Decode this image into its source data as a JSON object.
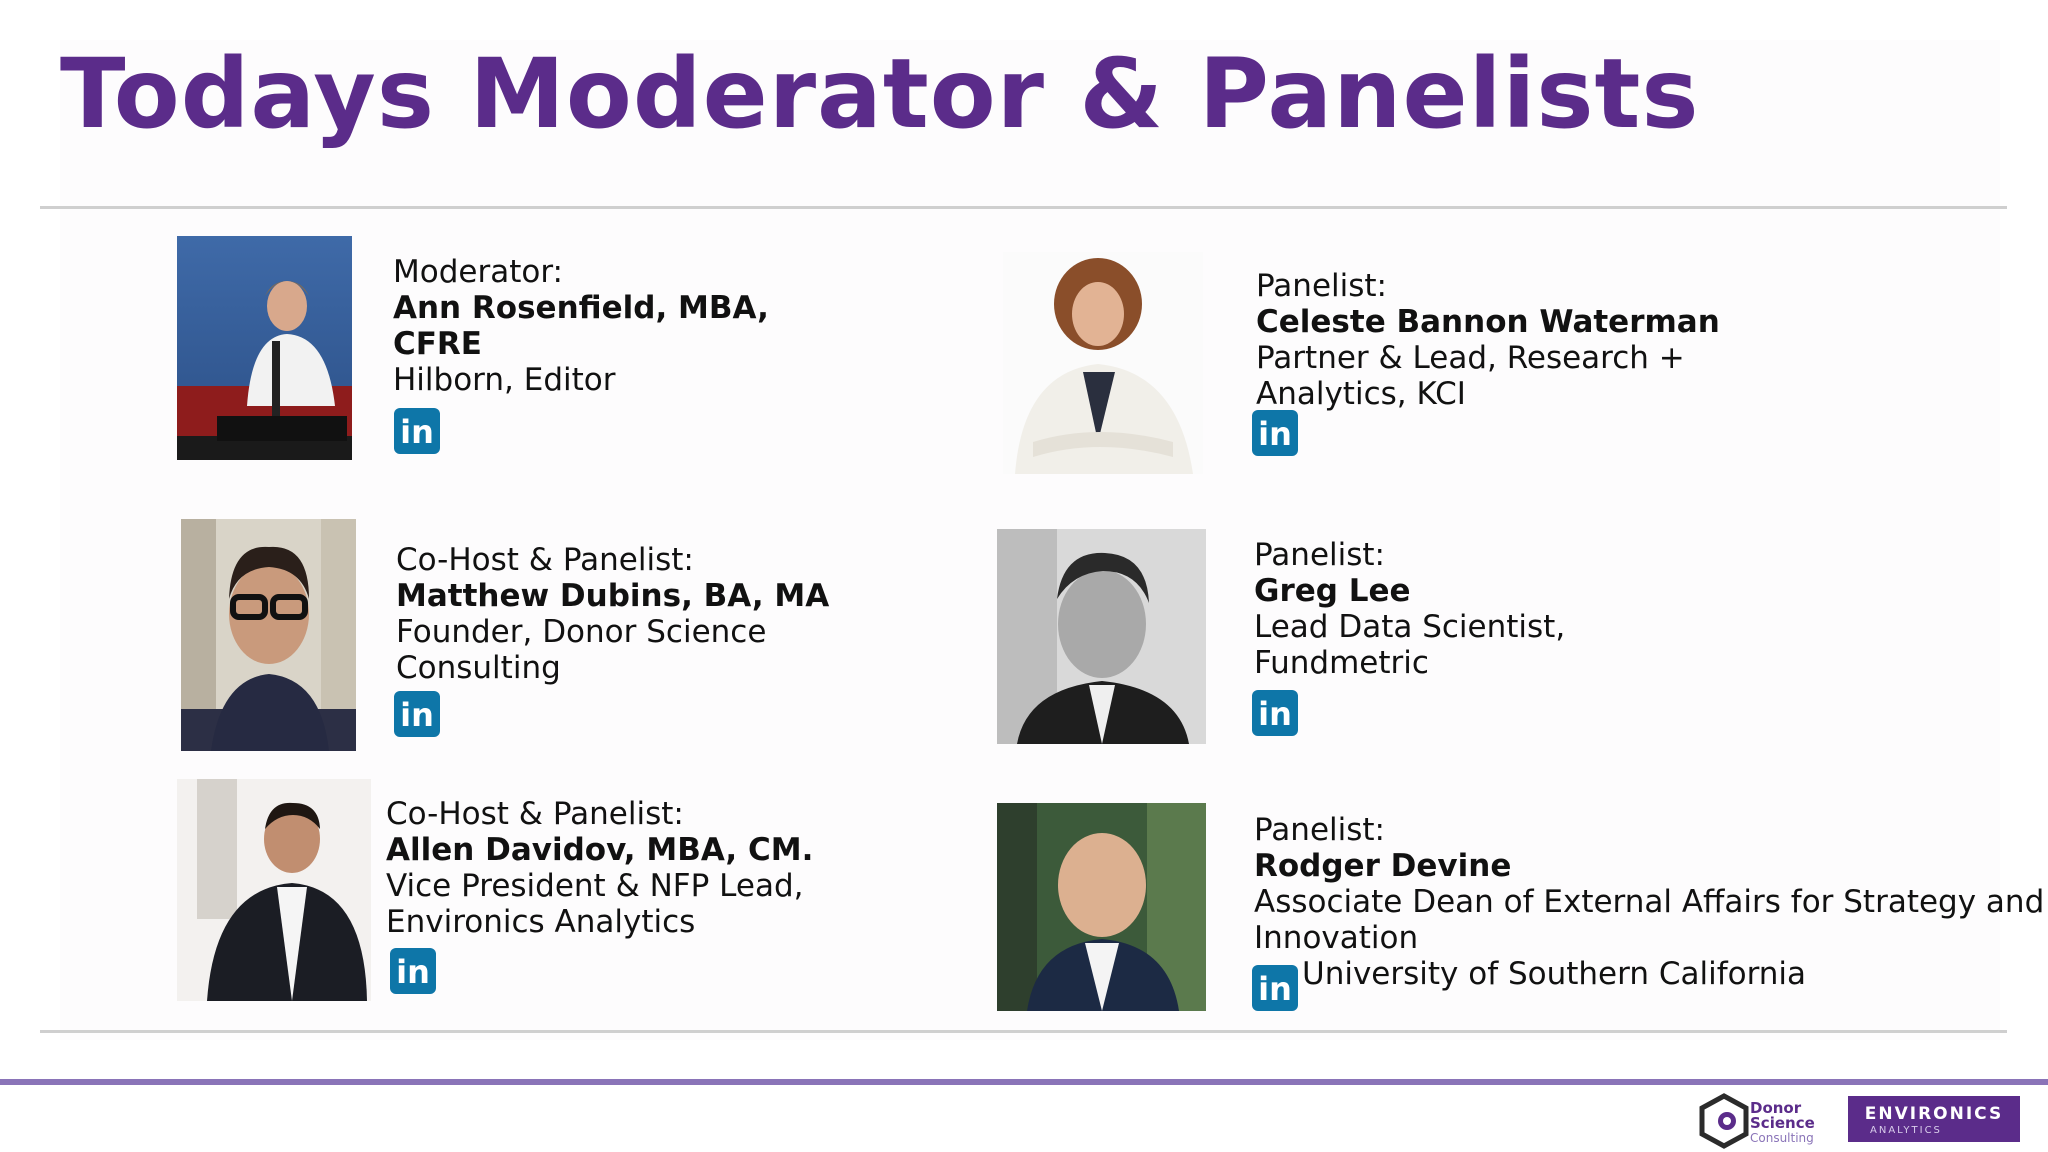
{
  "slide": {
    "title": "Todays Moderator & Panelists"
  },
  "people": [
    {
      "role": "Moderator:",
      "name_line1": "Ann Rosenfield, MBA,",
      "name_line2": "CFRE",
      "org": "Hilborn, Editor",
      "linkedin_icon": "linkedin-icon"
    },
    {
      "role": "Co-Host & Panelist:",
      "name": "Matthew Dubins, BA, MA",
      "org_line1": "Founder, Donor Science",
      "org_line2": "Consulting",
      "linkedin_icon": "linkedin-icon"
    },
    {
      "role": "Co-Host & Panelist:",
      "name": "Allen Davidov, MBA, CM.",
      "org_line1": "Vice President & NFP Lead,",
      "org_line2": "Environics Analytics",
      "linkedin_icon": "linkedin-icon"
    },
    {
      "role": "Panelist:",
      "name": "Celeste Bannon Waterman",
      "org_line1": "Partner & Lead, Research +",
      "org_line2": "Analytics, KCI",
      "linkedin_icon": "linkedin-icon"
    },
    {
      "role": "Panelist:",
      "name": "Greg Lee",
      "org_line1": "Lead Data Scientist,",
      "org_line2": "Fundmetric",
      "linkedin_icon": "linkedin-icon"
    },
    {
      "role": "Panelist:",
      "name": "Rodger Devine",
      "org_line1": "Associate Dean of External Affairs for Strategy and",
      "org_line2": "Innovation",
      "org_line3": "University of Southern California",
      "linkedin_icon": "linkedin-icon"
    }
  ],
  "linkedin_glyph": "in",
  "footer": {
    "donor_science_logo": [
      "Donor",
      "Science",
      "Consulting"
    ],
    "environics_logo": [
      "ENVIRONICS",
      "ANALYTICS"
    ]
  },
  "colors": {
    "title": "#5b2c8a",
    "accent_bar": "#8a74b8",
    "linkedin": "#0e76a8"
  }
}
